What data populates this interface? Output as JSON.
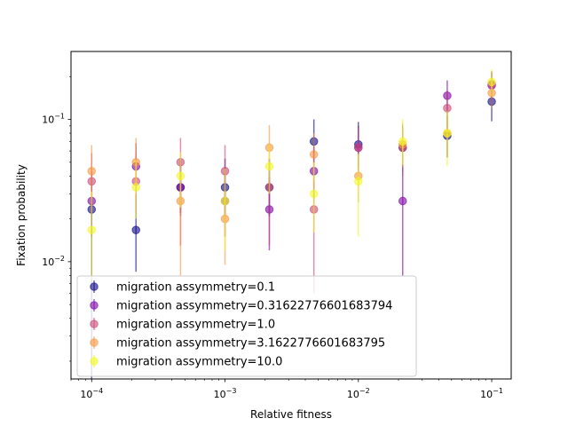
{
  "chart_data": {
    "type": "scatter",
    "title": "",
    "xlabel": "Relative fitness",
    "ylabel": "Fixation probability",
    "xscale": "log",
    "yscale": "log",
    "xlim": [
      7e-05,
      0.14
    ],
    "ylim": [
      0.0015,
      0.3
    ],
    "grid": false,
    "legend_position": "lower-left",
    "x_ticks": [
      {
        "value": 0.0001,
        "base": "10",
        "exp": "−4"
      },
      {
        "value": 0.001,
        "base": "10",
        "exp": "−3"
      },
      {
        "value": 0.01,
        "base": "10",
        "exp": "−2"
      },
      {
        "value": 0.1,
        "base": "10",
        "exp": "−1"
      }
    ],
    "y_ticks": [
      {
        "value": 0.01,
        "base": "10",
        "exp": "−2"
      },
      {
        "value": 0.1,
        "base": "10",
        "exp": "−1"
      }
    ],
    "x": [
      0.0001,
      0.000215,
      0.000464,
      0.001,
      0.00215,
      0.00464,
      0.01,
      0.0215,
      0.0464,
      0.1
    ],
    "series": [
      {
        "name": "migration assymmetry=0.1",
        "color": "#0d0887",
        "values": [
          0.0233,
          0.0167,
          0.0333,
          0.0333,
          0.0333,
          0.07,
          0.0667,
          0.0633,
          0.0767,
          0.1333
        ],
        "err_low": [
          null,
          0.0085,
          0.022,
          0.021,
          0.021,
          0.048,
          0.046,
          0.043,
          0.054,
          0.097
        ],
        "err_high": [
          0.041,
          0.03,
          0.052,
          0.053,
          0.053,
          0.1,
          0.096,
          0.091,
          0.108,
          0.17
        ]
      },
      {
        "name": "migration assymmetry=0.31622776601683794",
        "color": "#7e03a8",
        "values": [
          0.0267,
          0.0467,
          0.0333,
          0.0267,
          0.0233,
          0.0433,
          0.0633,
          0.0267,
          0.1467,
          0.1733
        ],
        "err_low": [
          0.015,
          0.031,
          0.021,
          0.015,
          0.012,
          0.028,
          0.043,
          0.008,
          0.11,
          0.135
        ],
        "err_high": [
          0.043,
          0.068,
          0.052,
          0.043,
          0.039,
          0.064,
          0.09,
          0.043,
          0.188,
          0.215
        ]
      },
      {
        "name": "migration assymmetry=1.0",
        "color": "#cc4778",
        "values": [
          0.0367,
          0.0367,
          0.05,
          0.0433,
          0.0333,
          0.0233,
          0.0633,
          0.0633,
          0.12,
          0.1767
        ],
        "err_low": [
          0.022,
          0.022,
          0.013,
          0.028,
          0.013,
          0.006,
          0.04,
          0.04,
          0.084,
          0.14
        ],
        "err_high": [
          0.058,
          0.058,
          0.074,
          0.066,
          0.052,
          0.039,
          0.088,
          0.088,
          0.16,
          0.218
        ]
      },
      {
        "name": "migration assymmetry=3.1622776601683795",
        "color": "#f89540",
        "values": [
          0.0433,
          0.05,
          0.0267,
          0.02,
          0.0633,
          0.0567,
          0.04,
          0.0667,
          0.08,
          0.1533
        ],
        "err_low": [
          0.028,
          0.032,
          0.008,
          0.0095,
          0.044,
          0.037,
          0.026,
          0.046,
          0.055,
          0.12
        ],
        "err_high": [
          0.066,
          0.074,
          0.043,
          0.032,
          0.091,
          0.08,
          0.058,
          0.095,
          0.11,
          0.19
        ]
      },
      {
        "name": "migration assymmetry=10.0",
        "color": "#f0f921",
        "values": [
          0.0167,
          0.0333,
          0.04,
          0.0267,
          0.0467,
          0.03,
          0.0367,
          0.07,
          0.08,
          0.1833
        ],
        "err_low": [
          0.0075,
          0.02,
          0.024,
          0.012,
          0.03,
          0.016,
          0.015,
          0.048,
          0.047,
          0.145
        ],
        "err_high": [
          0.031,
          0.052,
          0.059,
          0.045,
          0.067,
          0.05,
          0.057,
          0.1,
          0.115,
          0.225
        ]
      }
    ]
  }
}
